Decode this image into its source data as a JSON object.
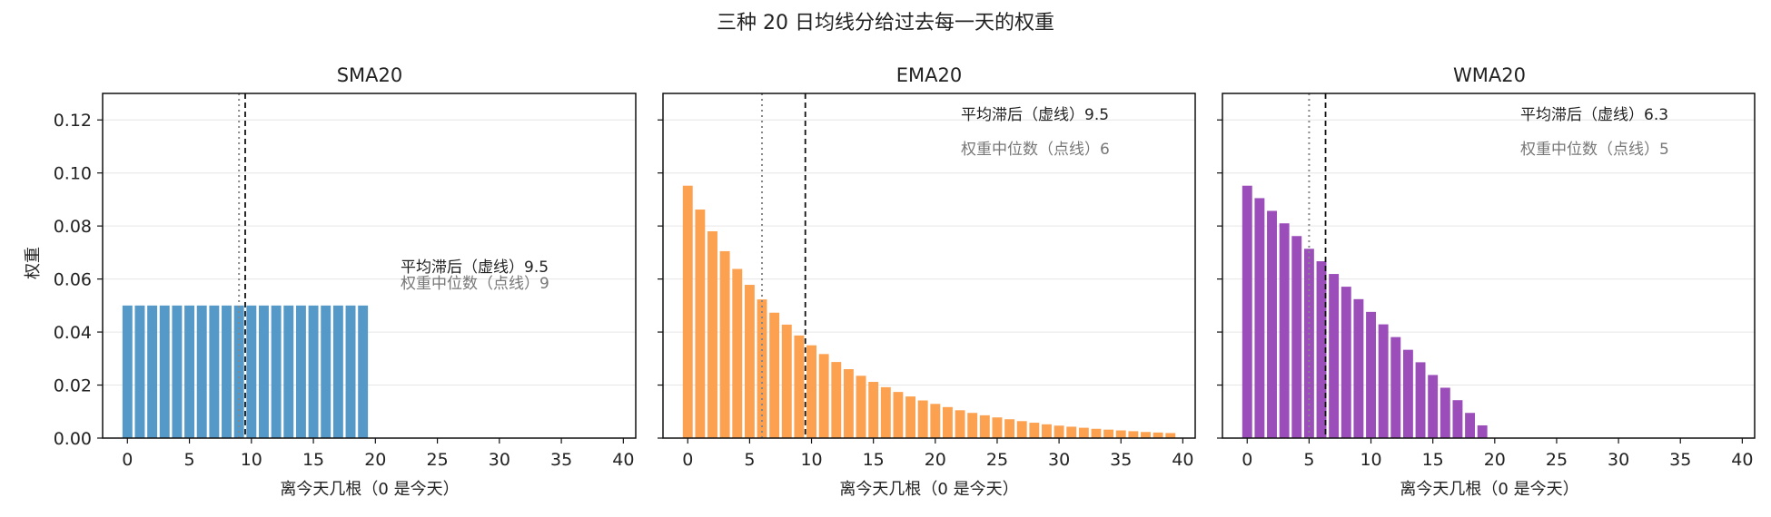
{
  "figure": {
    "title": "三种 20 日均线分给过去每一天的权重"
  },
  "chart_data": [
    {
      "type": "bar",
      "title": "SMA20",
      "xlabel": "离今天几根（0 是今天）",
      "ylabel": "权重",
      "xlim": [
        -2,
        41
      ],
      "ylim": [
        0,
        0.13
      ],
      "xticks": [
        "0",
        "5",
        "10",
        "15",
        "20",
        "25",
        "30",
        "35",
        "40"
      ],
      "yticks": [
        "0.00",
        "0.02",
        "0.04",
        "0.06",
        "0.08",
        "0.10",
        "0.12"
      ],
      "grid": true,
      "color": "#5499c7",
      "x": [
        0,
        1,
        2,
        3,
        4,
        5,
        6,
        7,
        8,
        9,
        10,
        11,
        12,
        13,
        14,
        15,
        16,
        17,
        18,
        19
      ],
      "values": [
        0.05,
        0.05,
        0.05,
        0.05,
        0.05,
        0.05,
        0.05,
        0.05,
        0.05,
        0.05,
        0.05,
        0.05,
        0.05,
        0.05,
        0.05,
        0.05,
        0.05,
        0.05,
        0.05,
        0.05
      ],
      "mean_lag": 9.5,
      "median": 9,
      "annotations": [
        "平均滞后（虚线）9.5",
        "权重中位数（点线）9"
      ]
    },
    {
      "type": "bar",
      "title": "EMA20",
      "xlabel": "离今天几根（0 是今天）",
      "ylabel": "",
      "xlim": [
        -2,
        41
      ],
      "ylim": [
        0,
        0.13
      ],
      "xticks": [
        "0",
        "5",
        "10",
        "15",
        "20",
        "25",
        "30",
        "35",
        "40"
      ],
      "yticks": [],
      "grid": true,
      "color": "#fca150",
      "x": [
        0,
        1,
        2,
        3,
        4,
        5,
        6,
        7,
        8,
        9,
        10,
        11,
        12,
        13,
        14,
        15,
        16,
        17,
        18,
        19,
        20,
        21,
        22,
        23,
        24,
        25,
        26,
        27,
        28,
        29,
        30,
        31,
        32,
        33,
        34,
        35,
        36,
        37,
        38,
        39
      ],
      "values": [
        0.0952,
        0.0862,
        0.078,
        0.0705,
        0.0638,
        0.0578,
        0.0523,
        0.0473,
        0.0428,
        0.0387,
        0.035,
        0.0317,
        0.0287,
        0.026,
        0.0235,
        0.0212,
        0.0192,
        0.0174,
        0.0157,
        0.0142,
        0.0129,
        0.0117,
        0.0105,
        0.0095,
        0.0086,
        0.0078,
        0.0071,
        0.0064,
        0.0058,
        0.0052,
        0.0047,
        0.0043,
        0.0039,
        0.0035,
        0.0032,
        0.0029,
        0.0026,
        0.0023,
        0.0021,
        0.0019
      ],
      "mean_lag": 9.5,
      "median": 6,
      "annotations": [
        "平均滞后（虚线）9.5",
        "权重中位数（点线）6"
      ]
    },
    {
      "type": "bar",
      "title": "WMA20",
      "xlabel": "离今天几根（0 是今天）",
      "ylabel": "",
      "xlim": [
        -2,
        41
      ],
      "ylim": [
        0,
        0.13
      ],
      "xticks": [
        "0",
        "5",
        "10",
        "15",
        "20",
        "25",
        "30",
        "35",
        "40"
      ],
      "yticks": [],
      "grid": true,
      "color": "#9b4dba",
      "x": [
        0,
        1,
        2,
        3,
        4,
        5,
        6,
        7,
        8,
        9,
        10,
        11,
        12,
        13,
        14,
        15,
        16,
        17,
        18,
        19
      ],
      "values": [
        0.0952,
        0.0905,
        0.0857,
        0.081,
        0.0762,
        0.0714,
        0.0667,
        0.0619,
        0.0571,
        0.0524,
        0.0476,
        0.0429,
        0.0381,
        0.0333,
        0.0286,
        0.0238,
        0.019,
        0.0143,
        0.0095,
        0.0048
      ],
      "mean_lag": 6.33,
      "median": 5,
      "annotations": [
        "平均滞后（虚线）6.3",
        "权重中位数（点线）5"
      ]
    }
  ]
}
